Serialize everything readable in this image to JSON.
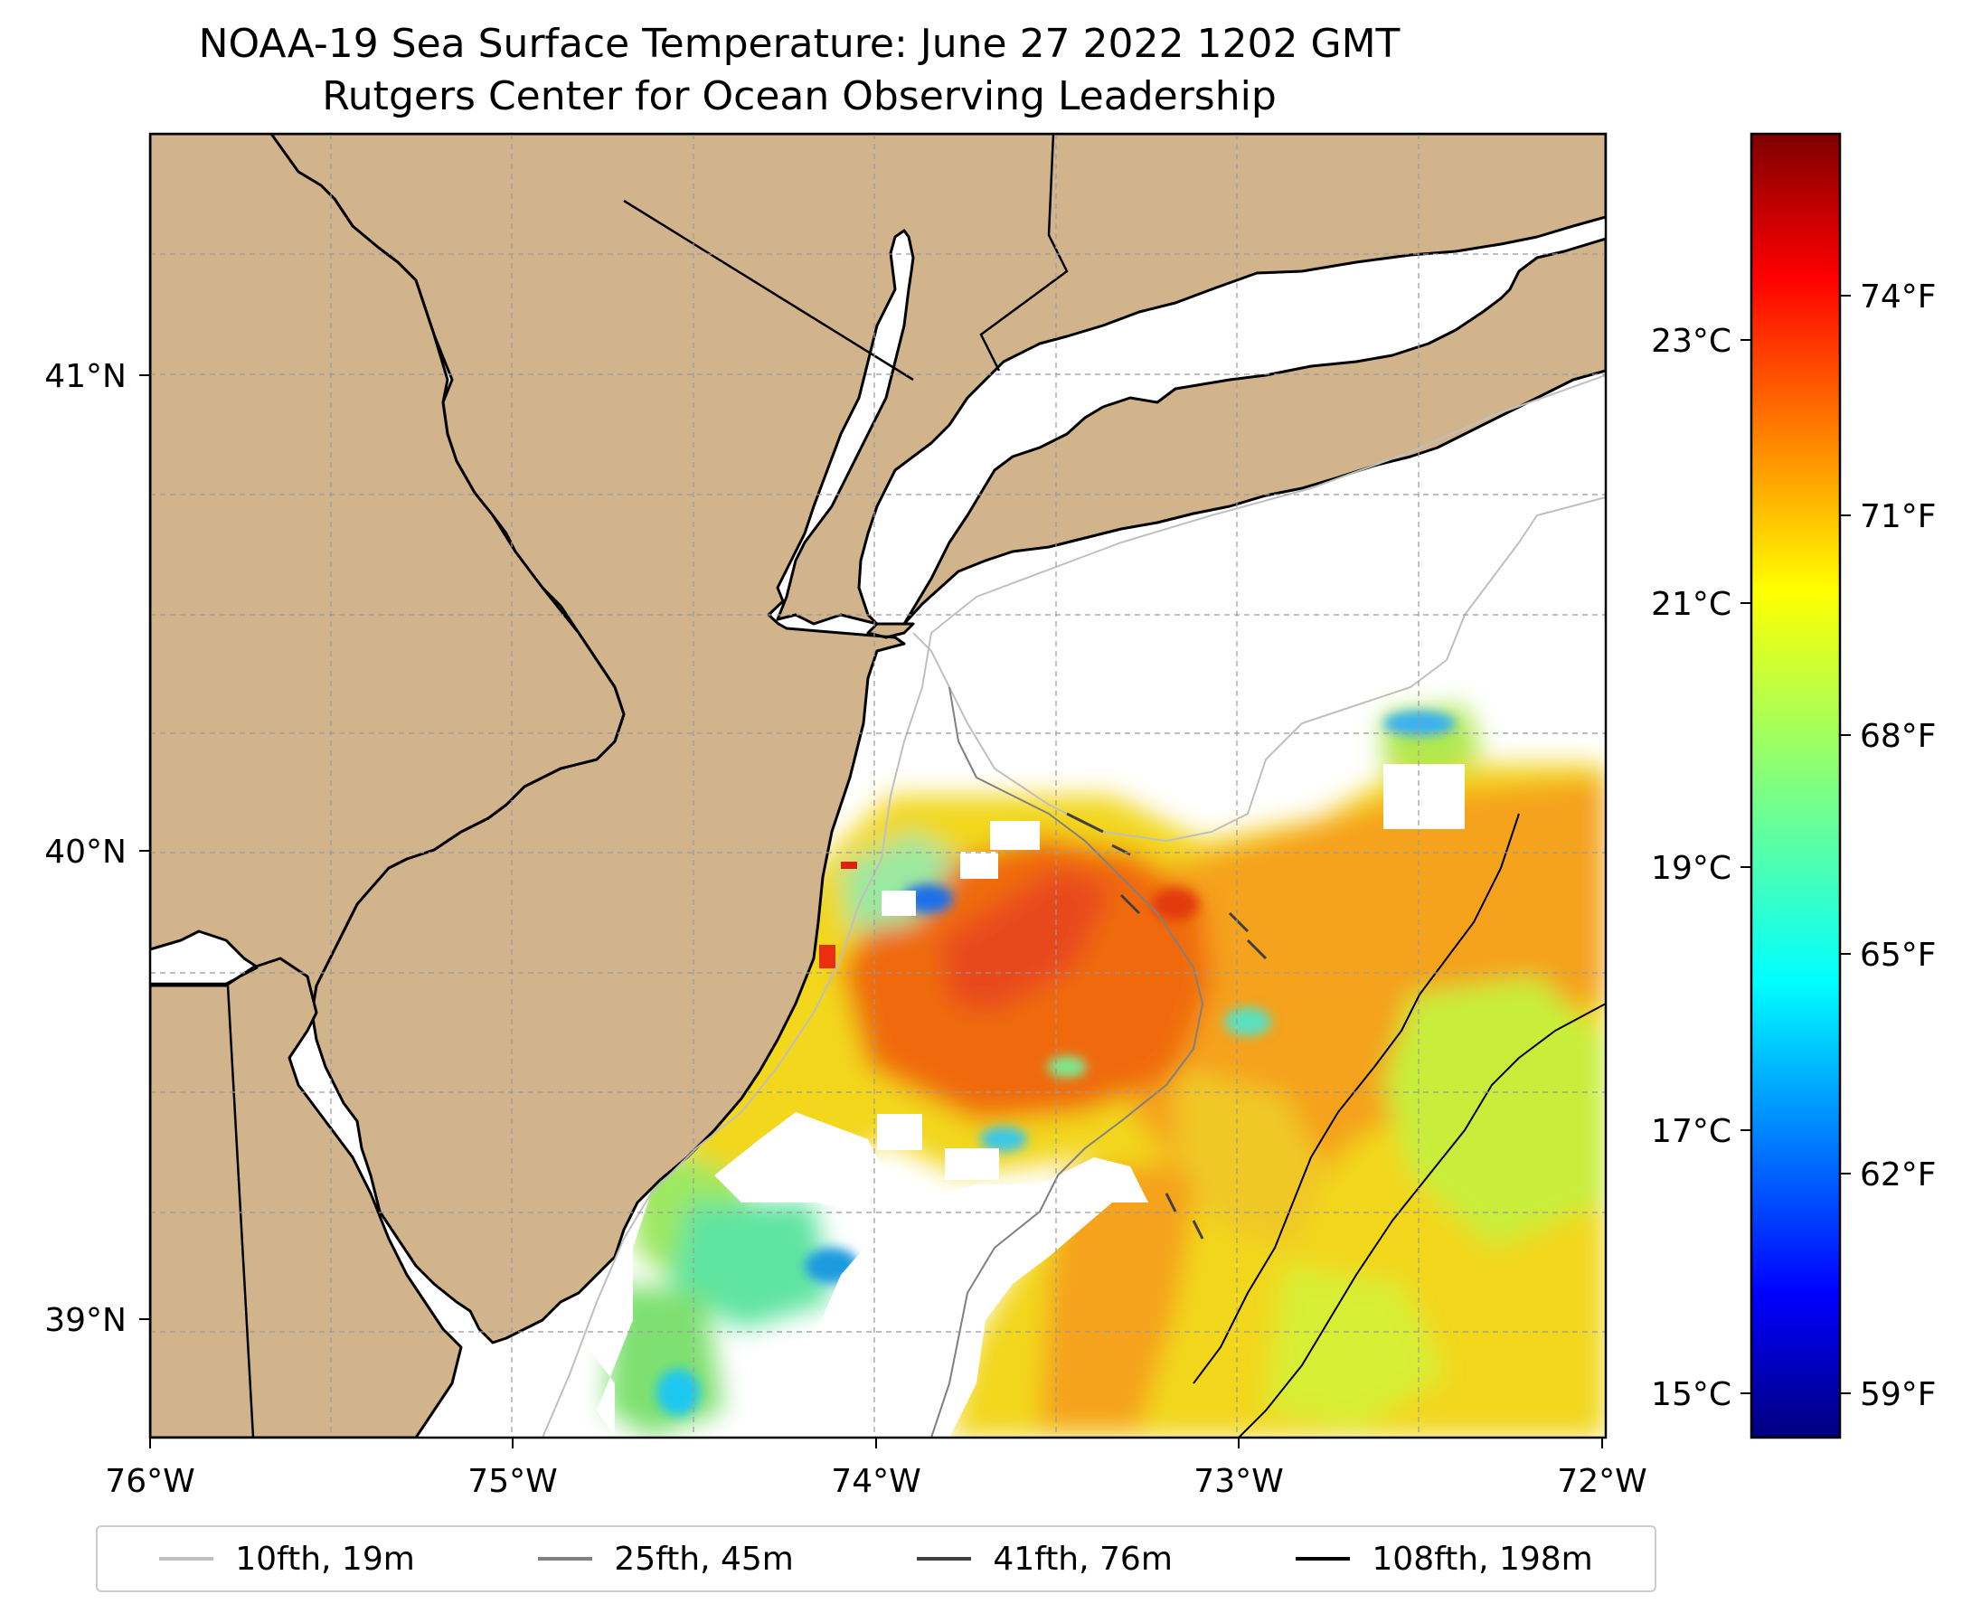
{
  "title_line1": "NOAA-19 Sea Surface Temperature: June 27 2022 1202 GMT",
  "title_line2": "Rutgers Center for Ocean Observing Leadership",
  "map": {
    "region": "New Jersey / New York Bight shelf",
    "lon_ticks": [
      "76°W",
      "75°W",
      "74°W",
      "73°W",
      "72°W"
    ],
    "lat_ticks": [
      "41°N",
      "40°N",
      "39°N"
    ],
    "lon_range": [
      -76,
      -72
    ],
    "lat_range": [
      38.75,
      41.5
    ],
    "land_color": "#d2b48c",
    "gridlines": true
  },
  "colorbar": {
    "colormap": "jet",
    "celsius_ticks": [
      "23°C",
      "21°C",
      "19°C",
      "17°C",
      "15°C"
    ],
    "fahrenheit_ticks": [
      "74°F",
      "71°F",
      "68°F",
      "65°F",
      "62°F",
      "59°F"
    ]
  },
  "legend": {
    "items": [
      {
        "label": "10fth, 19m",
        "color": "#bfbfbf"
      },
      {
        "label": "25fth, 45m",
        "color": "#808080"
      },
      {
        "label": "41fth, 76m",
        "color": "#404040"
      },
      {
        "label": "108fth, 198m",
        "color": "#000000"
      }
    ]
  }
}
